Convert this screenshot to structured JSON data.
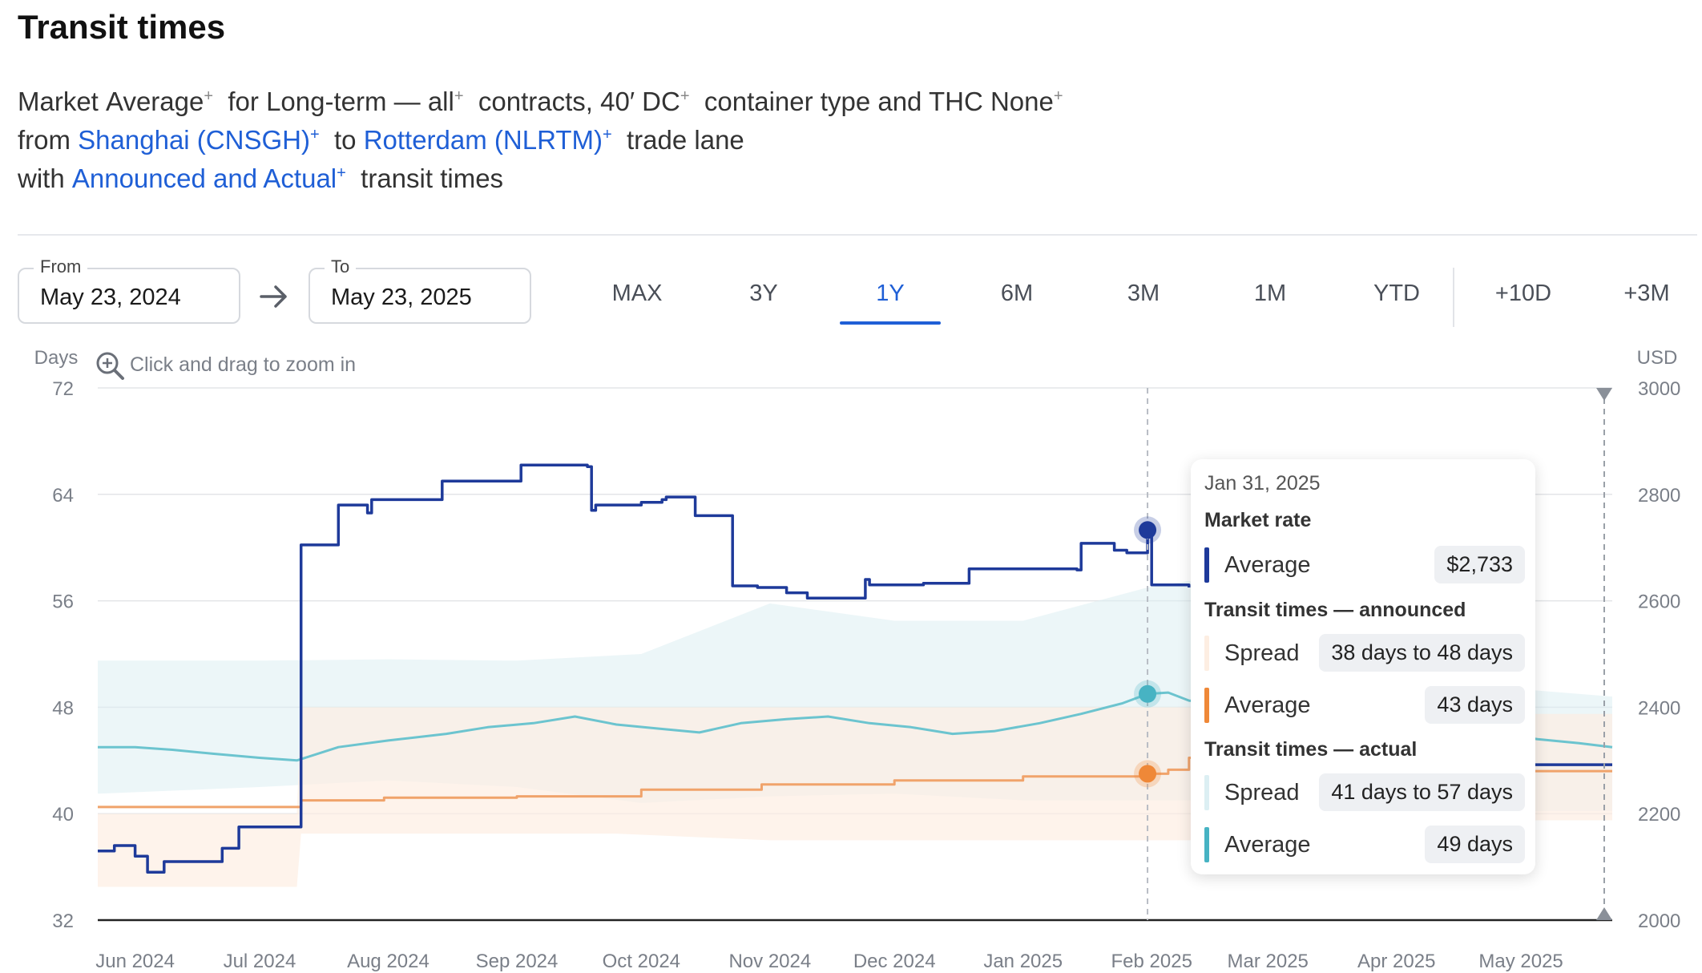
{
  "page": {
    "title": "Transit times",
    "desc": {
      "l1": {
        "w1": "Market",
        "w2": "Average",
        "w3": "for",
        "w4": "Long-term — all",
        "w5": "contracts,",
        "w6": "40′ DC",
        "w7": "container type and THC",
        "w8": "None"
      },
      "l2": {
        "w1": "from",
        "origin": "Shanghai (CNSGH)",
        "w2": "to",
        "dest": "Rotterdam (NLRTM)",
        "w3": "trade lane"
      },
      "l3": {
        "w1": "with",
        "mode": "Announced and Actual",
        "w2": "transit times"
      },
      "plus": "+"
    }
  },
  "controls": {
    "from": {
      "label": "From",
      "value": "May 23, 2024"
    },
    "to": {
      "label": "To",
      "value": "May 23, 2025"
    },
    "ranges": [
      "MAX",
      "3Y",
      "1Y",
      "6M",
      "3M",
      "1M",
      "YTD"
    ],
    "active_range": "1Y",
    "extends": [
      "+10D",
      "+3M"
    ],
    "zoom_hint": "Click and drag to zoom in"
  },
  "tooltip": {
    "date": "Jan 31, 2025",
    "market_header": "Market rate",
    "market_label": "Average",
    "market_value": "$2,733",
    "announced_header": "Transit times — announced",
    "announced_spread_label": "Spread",
    "announced_spread_value": "38 days to 48 days",
    "announced_avg_label": "Average",
    "announced_avg_value": "43 days",
    "actual_header": "Transit times — actual",
    "actual_spread_label": "Spread",
    "actual_spread_value": "41 days to 57 days",
    "actual_avg_label": "Average",
    "actual_avg_value": "49 days"
  },
  "chart_data": {
    "type": "line",
    "x_type": "date",
    "xlim": [
      "2024-05-23",
      "2025-05-23"
    ],
    "x_tick_labels": [
      "Jun 2024",
      "Jul 2024",
      "Aug 2024",
      "Sep 2024",
      "Oct 2024",
      "Nov 2024",
      "Dec 2024",
      "Jan 2025",
      "Feb 2025",
      "Mar 2025",
      "Apr 2025",
      "May 2025"
    ],
    "x_ticks": [
      "2024-06-01",
      "2024-07-01",
      "2024-08-01",
      "2024-09-01",
      "2024-10-01",
      "2024-11-01",
      "2024-12-01",
      "2025-01-01",
      "2025-02-01",
      "2025-03-01",
      "2025-04-01",
      "2025-05-01"
    ],
    "y_left": {
      "label": "Days",
      "ylim": [
        32,
        72
      ],
      "ticks": [
        32,
        40,
        48,
        56,
        64,
        72
      ]
    },
    "y_right": {
      "label": "USD",
      "ylim": [
        2000,
        3000
      ],
      "ticks": [
        2000,
        2200,
        2400,
        2600,
        2800,
        3000
      ]
    },
    "grid": true,
    "hover_date": "2025-01-31",
    "colors": {
      "market": "#1e3a9a",
      "announced": "#f0a36b",
      "announced_band": "#fdeee2",
      "actual": "#6cc4cf",
      "actual_band": "#dceff3",
      "actual_dot": "#47b3c3",
      "announced_dot": "#ef8838"
    },
    "series": [
      {
        "name": "Market rate — Average",
        "axis": "right",
        "step": true,
        "points": [
          [
            "2024-05-23",
            2130
          ],
          [
            "2024-05-27",
            2140
          ],
          [
            "2024-06-01",
            2120
          ],
          [
            "2024-06-04",
            2090
          ],
          [
            "2024-06-08",
            2110
          ],
          [
            "2024-06-15",
            2110
          ],
          [
            "2024-06-22",
            2135
          ],
          [
            "2024-06-26",
            2175
          ],
          [
            "2024-07-10",
            2175
          ],
          [
            "2024-07-11",
            2705
          ],
          [
            "2024-07-19",
            2705
          ],
          [
            "2024-07-20",
            2780
          ],
          [
            "2024-07-26",
            2780
          ],
          [
            "2024-07-27",
            2765
          ],
          [
            "2024-07-28",
            2790
          ],
          [
            "2024-08-13",
            2790
          ],
          [
            "2024-08-14",
            2825
          ],
          [
            "2024-08-31",
            2825
          ],
          [
            "2024-09-02",
            2855
          ],
          [
            "2024-09-18",
            2852
          ],
          [
            "2024-09-19",
            2770
          ],
          [
            "2024-09-20",
            2780
          ],
          [
            "2024-09-25",
            2780
          ],
          [
            "2024-10-01",
            2785
          ],
          [
            "2024-10-06",
            2790
          ],
          [
            "2024-10-07",
            2795
          ],
          [
            "2024-10-14",
            2760
          ],
          [
            "2024-10-22",
            2760
          ],
          [
            "2024-10-23",
            2628
          ],
          [
            "2024-10-29",
            2625
          ],
          [
            "2024-11-05",
            2615
          ],
          [
            "2024-11-10",
            2605
          ],
          [
            "2024-11-23",
            2605
          ],
          [
            "2024-11-24",
            2640
          ],
          [
            "2024-11-25",
            2630
          ],
          [
            "2024-12-08",
            2633
          ],
          [
            "2024-12-18",
            2633
          ],
          [
            "2024-12-19",
            2660
          ],
          [
            "2025-01-07",
            2660
          ],
          [
            "2025-01-14",
            2658
          ],
          [
            "2025-01-15",
            2708
          ],
          [
            "2025-01-22",
            2708
          ],
          [
            "2025-01-23",
            2695
          ],
          [
            "2025-01-26",
            2690
          ],
          [
            "2025-01-31",
            2733
          ],
          [
            "2025-02-01",
            2630
          ],
          [
            "2025-02-10",
            2625
          ]
        ]
      },
      {
        "name": "Market rate — Average (after Mar 2025)",
        "axis": "right",
        "step": true,
        "points": [
          [
            "2025-04-28",
            2300
          ],
          [
            "2025-05-01",
            2292
          ],
          [
            "2025-05-23",
            2292
          ]
        ]
      },
      {
        "name": "Transit times — actual — Average",
        "axis": "left",
        "points": [
          [
            "2024-05-23",
            45
          ],
          [
            "2024-06-01",
            45
          ],
          [
            "2024-06-10",
            44.8
          ],
          [
            "2024-06-20",
            44.5
          ],
          [
            "2024-07-01",
            44.2
          ],
          [
            "2024-07-10",
            44
          ],
          [
            "2024-07-20",
            45
          ],
          [
            "2024-08-01",
            45.5
          ],
          [
            "2024-08-15",
            46
          ],
          [
            "2024-08-25",
            46.5
          ],
          [
            "2024-09-05",
            46.8
          ],
          [
            "2024-09-15",
            47.3
          ],
          [
            "2024-09-25",
            46.7
          ],
          [
            "2024-10-05",
            46.4
          ],
          [
            "2024-10-15",
            46.1
          ],
          [
            "2024-10-25",
            46.8
          ],
          [
            "2024-11-05",
            47.1
          ],
          [
            "2024-11-15",
            47.3
          ],
          [
            "2024-11-25",
            46.8
          ],
          [
            "2024-12-05",
            46.5
          ],
          [
            "2024-12-15",
            46
          ],
          [
            "2024-12-25",
            46.2
          ],
          [
            "2025-01-05",
            46.8
          ],
          [
            "2025-01-15",
            47.5
          ],
          [
            "2025-01-25",
            48.3
          ],
          [
            "2025-01-31",
            49
          ],
          [
            "2025-02-05",
            49.1
          ],
          [
            "2025-02-10",
            48.5
          ],
          [
            "2025-04-25",
            46
          ],
          [
            "2025-05-05",
            45.6
          ],
          [
            "2025-05-15",
            45.3
          ],
          [
            "2025-05-23",
            45
          ]
        ]
      },
      {
        "name": "Transit times — announced — Average",
        "axis": "left",
        "step": true,
        "points": [
          [
            "2024-05-23",
            40.5
          ],
          [
            "2024-07-10",
            40.5
          ],
          [
            "2024-07-11",
            41
          ],
          [
            "2024-07-31",
            41.2
          ],
          [
            "2024-09-01",
            41.3
          ],
          [
            "2024-10-01",
            41.8
          ],
          [
            "2024-10-30",
            42.2
          ],
          [
            "2024-12-01",
            42.5
          ],
          [
            "2025-01-01",
            42.8
          ],
          [
            "2025-01-31",
            43
          ],
          [
            "2025-02-05",
            43.3
          ],
          [
            "2025-02-10",
            44.2
          ],
          [
            "2025-04-28",
            43.2
          ],
          [
            "2025-05-23",
            43.2
          ]
        ]
      }
    ],
    "bands": [
      {
        "name": "Transit times — actual — Spread",
        "axis": "left",
        "points": [
          [
            "2024-05-23",
            51.5,
            41.5
          ],
          [
            "2024-07-01",
            51.5,
            42
          ],
          [
            "2024-08-01",
            51.6,
            42.5
          ],
          [
            "2024-09-01",
            51.5,
            42
          ],
          [
            "2024-10-01",
            52,
            40.8
          ],
          [
            "2024-11-01",
            55.8,
            41.3
          ],
          [
            "2024-12-01",
            54.5,
            41.5
          ],
          [
            "2025-01-01",
            54.5,
            41
          ],
          [
            "2025-01-31",
            57,
            41
          ],
          [
            "2025-02-10",
            57.5,
            41
          ],
          [
            "2025-04-25",
            49.5,
            40.2
          ],
          [
            "2025-05-23",
            48.8,
            40.2
          ]
        ]
      },
      {
        "name": "Transit times — announced — Spread",
        "axis": "left",
        "points": [
          [
            "2024-05-23",
            40,
            34.5
          ],
          [
            "2024-07-10",
            40,
            34.5
          ],
          [
            "2024-07-11",
            48,
            38.5
          ],
          [
            "2024-09-25",
            48,
            38.5
          ],
          [
            "2024-11-01",
            48,
            38
          ],
          [
            "2025-01-31",
            48,
            38
          ],
          [
            "2025-02-10",
            48,
            38
          ],
          [
            "2025-04-28",
            47.5,
            39.5
          ],
          [
            "2025-05-23",
            47.5,
            39.5
          ]
        ]
      }
    ]
  }
}
